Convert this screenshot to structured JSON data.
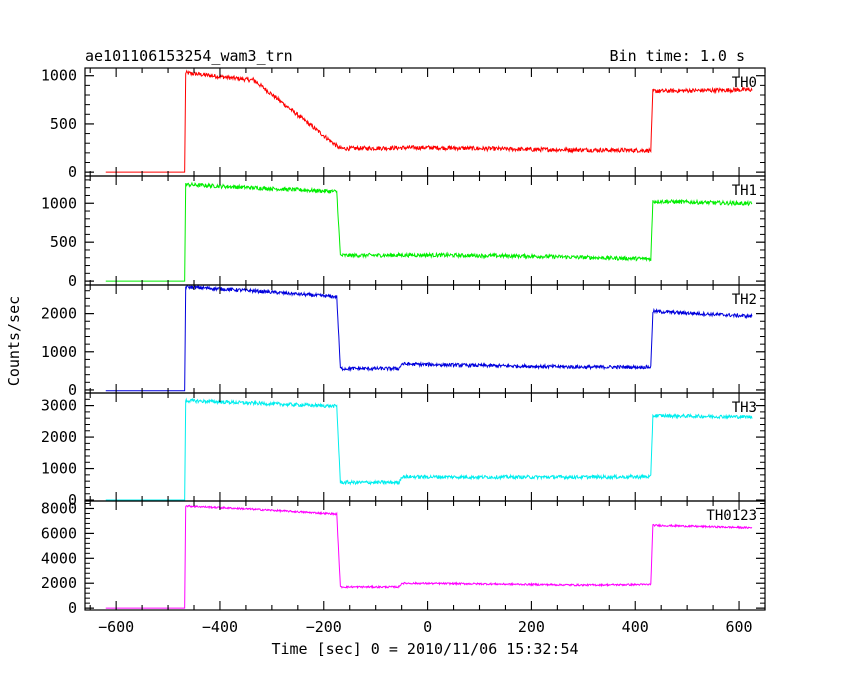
{
  "chart_data": {
    "type": "line",
    "title": "ae101106153254_wam3_trn",
    "bin_time_label": "Bin time: 1.0 s",
    "xlabel": "Time [sec] 0 = 2010/11/06 15:32:54",
    "ylabel": "Counts/sec",
    "xlim": [
      -660,
      650
    ],
    "x_ticks": [
      -600,
      -400,
      -200,
      0,
      200,
      400,
      600
    ],
    "x_tick_labels": [
      "−600",
      "−400",
      "−200",
      "0",
      "200",
      "400",
      "600"
    ],
    "grid": false,
    "series": [
      {
        "name": "TH0",
        "color": "#ff0000",
        "ylim": [
          -40,
          1080
        ],
        "y_ticks": [
          0,
          500,
          1000
        ],
        "x": [
          -620,
          -468,
          -466,
          -340,
          -336,
          -170,
          -165,
          0,
          200,
          430,
          434,
          625
        ],
        "y": [
          0,
          0,
          1030,
          955,
          960,
          250,
          245,
          255,
          235,
          225,
          840,
          855
        ],
        "noise": 22
      },
      {
        "name": "TH1",
        "color": "#00ee00",
        "ylim": [
          -50,
          1350
        ],
        "y_ticks": [
          0,
          500,
          1000
        ],
        "x": [
          -620,
          -468,
          -466,
          -340,
          -175,
          -168,
          0,
          200,
          430,
          434,
          625
        ],
        "y": [
          0,
          0,
          1240,
          1200,
          1150,
          330,
          335,
          320,
          285,
          1025,
          995
        ],
        "noise": 25
      },
      {
        "name": "TH2",
        "color": "#0000dd",
        "ylim": [
          -80,
          2750
        ],
        "y_ticks": [
          0,
          1000,
          2000
        ],
        "x": [
          -620,
          -468,
          -466,
          -340,
          -175,
          -168,
          -55,
          -50,
          100,
          300,
          430,
          434,
          625
        ],
        "y": [
          -20,
          -20,
          2700,
          2600,
          2440,
          560,
          560,
          680,
          640,
          600,
          600,
          2060,
          1930
        ],
        "noise": 45
      },
      {
        "name": "TH3",
        "color": "#00eeee",
        "ylim": [
          -30,
          3400
        ],
        "y_ticks": [
          0,
          1000,
          2000,
          3000
        ],
        "x": [
          -620,
          -468,
          -466,
          -340,
          -175,
          -168,
          -55,
          -50,
          100,
          300,
          430,
          434,
          625
        ],
        "y": [
          0,
          0,
          3160,
          3080,
          2980,
          560,
          560,
          740,
          730,
          730,
          740,
          2680,
          2640
        ],
        "noise": 55
      },
      {
        "name": "TH0123",
        "color": "#ff00ff",
        "ylim": [
          -150,
          8600
        ],
        "y_ticks": [
          0,
          2000,
          4000,
          6000,
          8000
        ],
        "x": [
          -620,
          -468,
          -466,
          -340,
          -175,
          -168,
          -55,
          -50,
          100,
          300,
          430,
          434,
          625
        ],
        "y": [
          0,
          0,
          8200,
          7950,
          7550,
          1700,
          1700,
          2000,
          1950,
          1850,
          1900,
          6650,
          6450
        ],
        "noise": 70
      }
    ]
  }
}
